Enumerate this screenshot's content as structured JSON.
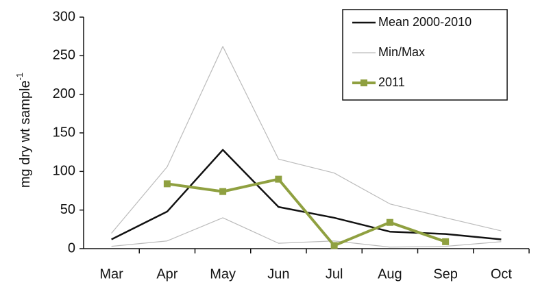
{
  "chart_data": {
    "type": "line",
    "ylabel": "mg dry wt sample",
    "ylabel_superscript": "-1",
    "categories": [
      "Mar",
      "Apr",
      "May",
      "Jun",
      "Jul",
      "Aug",
      "Sep",
      "Oct"
    ],
    "series": [
      {
        "name": "Mean 2000-2010",
        "color": "#111111",
        "values": [
          12,
          48,
          128,
          54,
          40,
          22,
          19,
          12
        ]
      },
      {
        "name": "Min/Max",
        "color": "#bbbbbb",
        "values": [
          20,
          106,
          262,
          116,
          98,
          58,
          40,
          23
        ],
        "lower": [
          3,
          10,
          40,
          7,
          10,
          2,
          3,
          9
        ]
      },
      {
        "name": "2011",
        "color": "#8fa040",
        "values": [
          null,
          84,
          74,
          90,
          4,
          34,
          9,
          null
        ],
        "markers": true
      }
    ],
    "ylim": [
      0,
      300
    ],
    "yticks": [
      0,
      50,
      100,
      150,
      200,
      250,
      300
    ]
  }
}
